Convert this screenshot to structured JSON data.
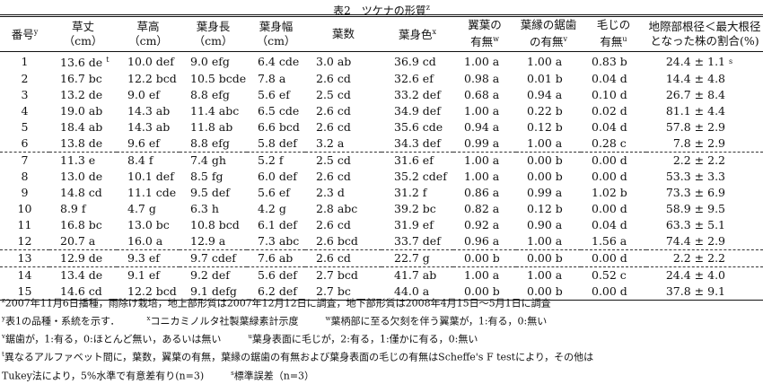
{
  "title": {
    "text": "表2　ツケナの形質",
    "mark": "z"
  },
  "headers": [
    {
      "l1": "番号",
      "mark": "y",
      "l2": ""
    },
    {
      "l1": "草丈",
      "l2": "（cm）"
    },
    {
      "l1": "草高",
      "l2": "（cm）"
    },
    {
      "l1": "葉身長",
      "l2": "（cm）"
    },
    {
      "l1": "葉身幅",
      "l2": "（cm）"
    },
    {
      "l1": "葉数",
      "l2": ""
    },
    {
      "l1": "葉身色",
      "mark": "x",
      "l2": ""
    },
    {
      "l1": "翼葉の",
      "l2": "有無",
      "mark2": "w"
    },
    {
      "l1": "葉縁の鋸歯",
      "l2": "の有無",
      "mark2": "v"
    },
    {
      "l1": "毛じの",
      "l2": "有無",
      "mark2": "u"
    },
    {
      "l1": "地際部根径＜最大根径",
      "l2": "となった株の割合(%)"
    }
  ],
  "rows": [
    [
      "1",
      "13.6 de",
      "10.0 def",
      "9.0 efg",
      "6.4 cde",
      "3.0 ab",
      "36.9 cd",
      "1.00 a",
      "1.00 a",
      "0.83 b",
      "24.4 ± 1.1"
    ],
    [
      "2",
      "16.7 bc",
      "12.2 bcd",
      "10.5 bcde",
      "7.8 a",
      "2.6 cd",
      "32.6 ef",
      "0.98 a",
      "0.01 b",
      "0.04 d",
      "14.4 ± 4.8"
    ],
    [
      "3",
      "13.2 de",
      "9.0 ef",
      "8.8 efg",
      "5.6 ef",
      "2.5 cd",
      "33.2 def",
      "0.68 a",
      "0.94 a",
      "0.10 d",
      "26.7 ± 8.4"
    ],
    [
      "4",
      "19.0 ab",
      "14.3 ab",
      "11.4 abc",
      "6.5 cde",
      "2.6 cd",
      "34.9 def",
      "1.00 a",
      "0.22 b",
      "0.02 d",
      "81.1 ± 4.4"
    ],
    [
      "5",
      "18.4 ab",
      "14.3 ab",
      "11.8 ab",
      "6.6 bcd",
      "2.6 cd",
      "35.6 cde",
      "0.94 a",
      "0.12 b",
      "0.04 d",
      "57.8 ± 2.9"
    ],
    [
      "6",
      "13.8 de",
      "9.6 ef",
      "8.8 efg",
      "5.8 def",
      "3.2 a",
      "34.3 def",
      "0.99 a",
      "1.00 a",
      "0.28 c",
      "7.8 ± 2.9"
    ],
    [
      "7",
      "11.3 e",
      "8.4 f",
      "7.4 gh",
      "5.2 f",
      "2.5 cd",
      "31.6 ef",
      "1.00 a",
      "0.00 b",
      "0.00 d",
      "2.2 ± 2.2"
    ],
    [
      "8",
      "13.0 de",
      "10.1 def",
      "8.5 fg",
      "6.0 def",
      "2.6 cd",
      "35.2 cdef",
      "1.00 a",
      "0.00 b",
      "0.00 d",
      "53.3 ± 3.3"
    ],
    [
      "9",
      "14.8 cd",
      "11.1 cde",
      "9.5 def",
      "5.6 ef",
      "2.3 d",
      "31.2 f",
      "0.86 a",
      "0.99 a",
      "1.02 b",
      "73.3 ± 6.9"
    ],
    [
      "10",
      "8.9 f",
      "4.7 g",
      "6.3 h",
      "4.2 g",
      "2.8 abc",
      "39.2 bc",
      "0.82 a",
      "0.12 b",
      "0.00 d",
      "58.9 ± 9.5"
    ],
    [
      "11",
      "16.8 bc",
      "13.0 bc",
      "10.8 bcd",
      "6.1 def",
      "2.6 cd",
      "31.9 ef",
      "0.92 a",
      "0.90 a",
      "0.04 d",
      "63.3 ± 5.1"
    ],
    [
      "12",
      "20.7 a",
      "16.0 a",
      "12.9 a",
      "7.3 abc",
      "2.6 bcd",
      "33.7 def",
      "0.96 a",
      "1.00 a",
      "1.56 a",
      "74.4 ± 2.9"
    ],
    [
      "13",
      "12.9 de",
      "9.3 ef",
      "9.7 cdef",
      "7.6 ab",
      "2.6 cd",
      "22.7 g",
      "0.00 b",
      "0.00 b",
      "0.00 d",
      "2.2 ± 2.2"
    ],
    [
      "14",
      "13.4 de",
      "9.1 ef",
      "9.2 def",
      "5.6 def",
      "2.7 bcd",
      "41.7 ab",
      "1.00 a",
      "1.00 a",
      "0.52 c",
      "24.4 ± 4.0"
    ],
    [
      "15",
      "14.6 cd",
      "12.2 bcd",
      "9.1 defg",
      "6.2 def",
      "2.7 bc",
      "44.0 a",
      "0.00 b",
      "0.00 b",
      "0.00 d",
      "37.8 ± 9.1"
    ]
  ],
  "cell_marks": {
    "row1_col1": "t",
    "row1_last": "s"
  },
  "notes": {
    "z": {
      "mark": "z",
      "text": "2007年11月6日播種，雨除け栽培，地上部形質は2007年12月12日に調査，地下部形質は2008年4月15日～5月1日に調査"
    },
    "y": {
      "mark": "y",
      "text": "表1の品種・系統を示す．"
    },
    "x": {
      "mark": "x",
      "text": "コニカミノルタ社製葉緑素計示度"
    },
    "w": {
      "mark": "w",
      "text": "葉柄部に至る欠刻を伴う翼葉が，1:有る，0:無い"
    },
    "v": {
      "mark": "v",
      "text": "鋸歯が，1:有る，0:ほとんど無い，あるいは無い"
    },
    "u": {
      "mark": "u",
      "text": "葉身表面に毛じが，2:有る，1:僅かに有る，0:無い"
    },
    "t": {
      "mark": "t",
      "text": "異なるアルファベット間に，葉数，翼葉の有無，葉縁の鋸歯の有無および葉身表面の毛じの有無はScheffe's F testにより，その他は"
    },
    "t2": {
      "text": "Tukey法により，5%水準で有意差有り(n=3)"
    },
    "s": {
      "mark": "s",
      "text": "標準誤差（n=3）"
    }
  }
}
